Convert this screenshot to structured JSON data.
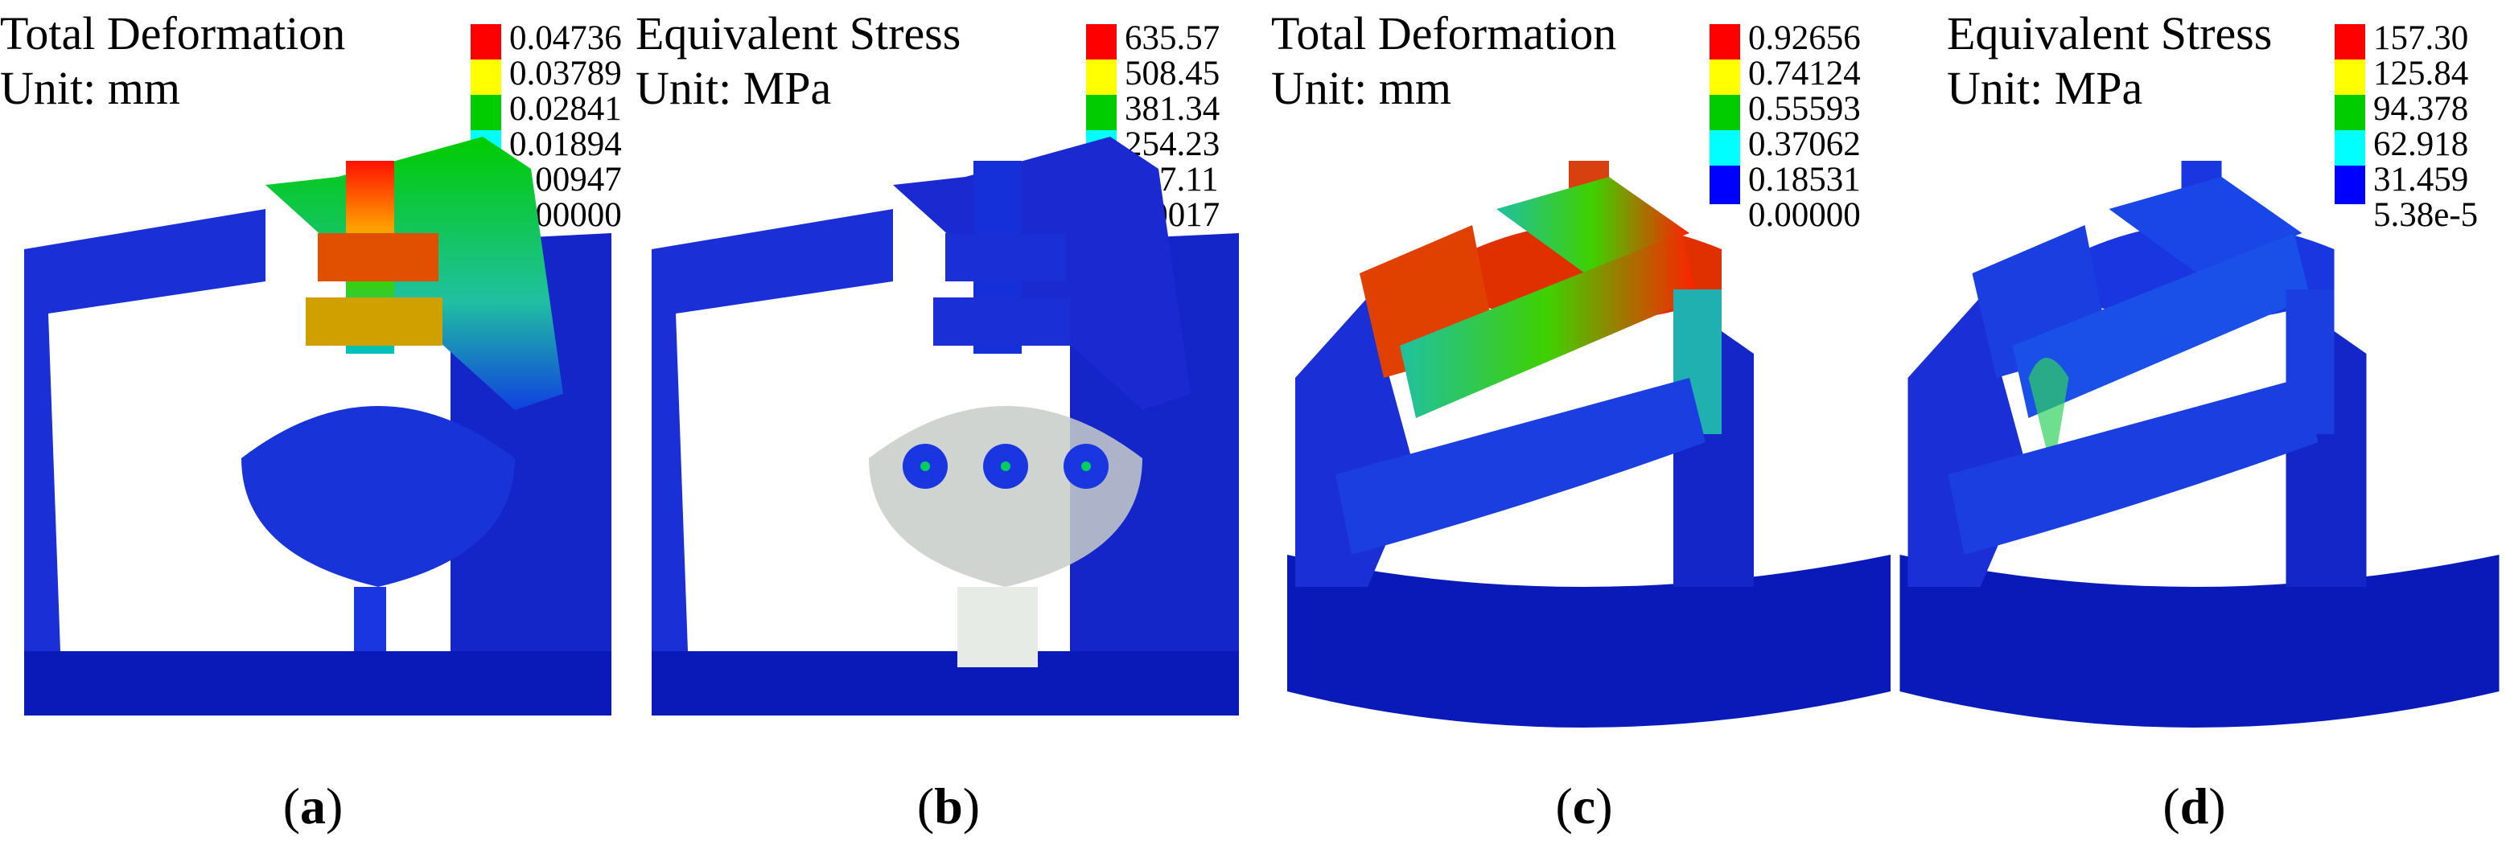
{
  "palette": [
    "#ff0000",
    "#ffff00",
    "#00cc00",
    "#00ffff",
    "#0000ff"
  ],
  "panels": [
    {
      "title": "Total Deformation",
      "unit": "Unit: mm",
      "legend": [
        "0.04736",
        "0.03789",
        "0.02841",
        "0.01894",
        "0.00947",
        "0.00000"
      ],
      "caption_letter": "a"
    },
    {
      "title": "Equivalent Stress",
      "unit": "Unit: MPa",
      "legend": [
        "635.57",
        "508.45",
        "381.34",
        "254.23",
        "127.11",
        "0.0017"
      ],
      "caption_letter": "b"
    },
    {
      "title": "Total Deformation",
      "unit": "Unit: mm",
      "legend": [
        "0.92656",
        "0.74124",
        "0.55593",
        "0.37062",
        "0.18531",
        "0.00000"
      ],
      "caption_letter": "c"
    },
    {
      "title": "Equivalent Stress",
      "unit": "Unit: MPa",
      "legend": [
        "157.30",
        "125.84",
        "94.378",
        "62.918",
        "31.459",
        "5.38e-5"
      ],
      "caption_letter": "d"
    }
  ]
}
